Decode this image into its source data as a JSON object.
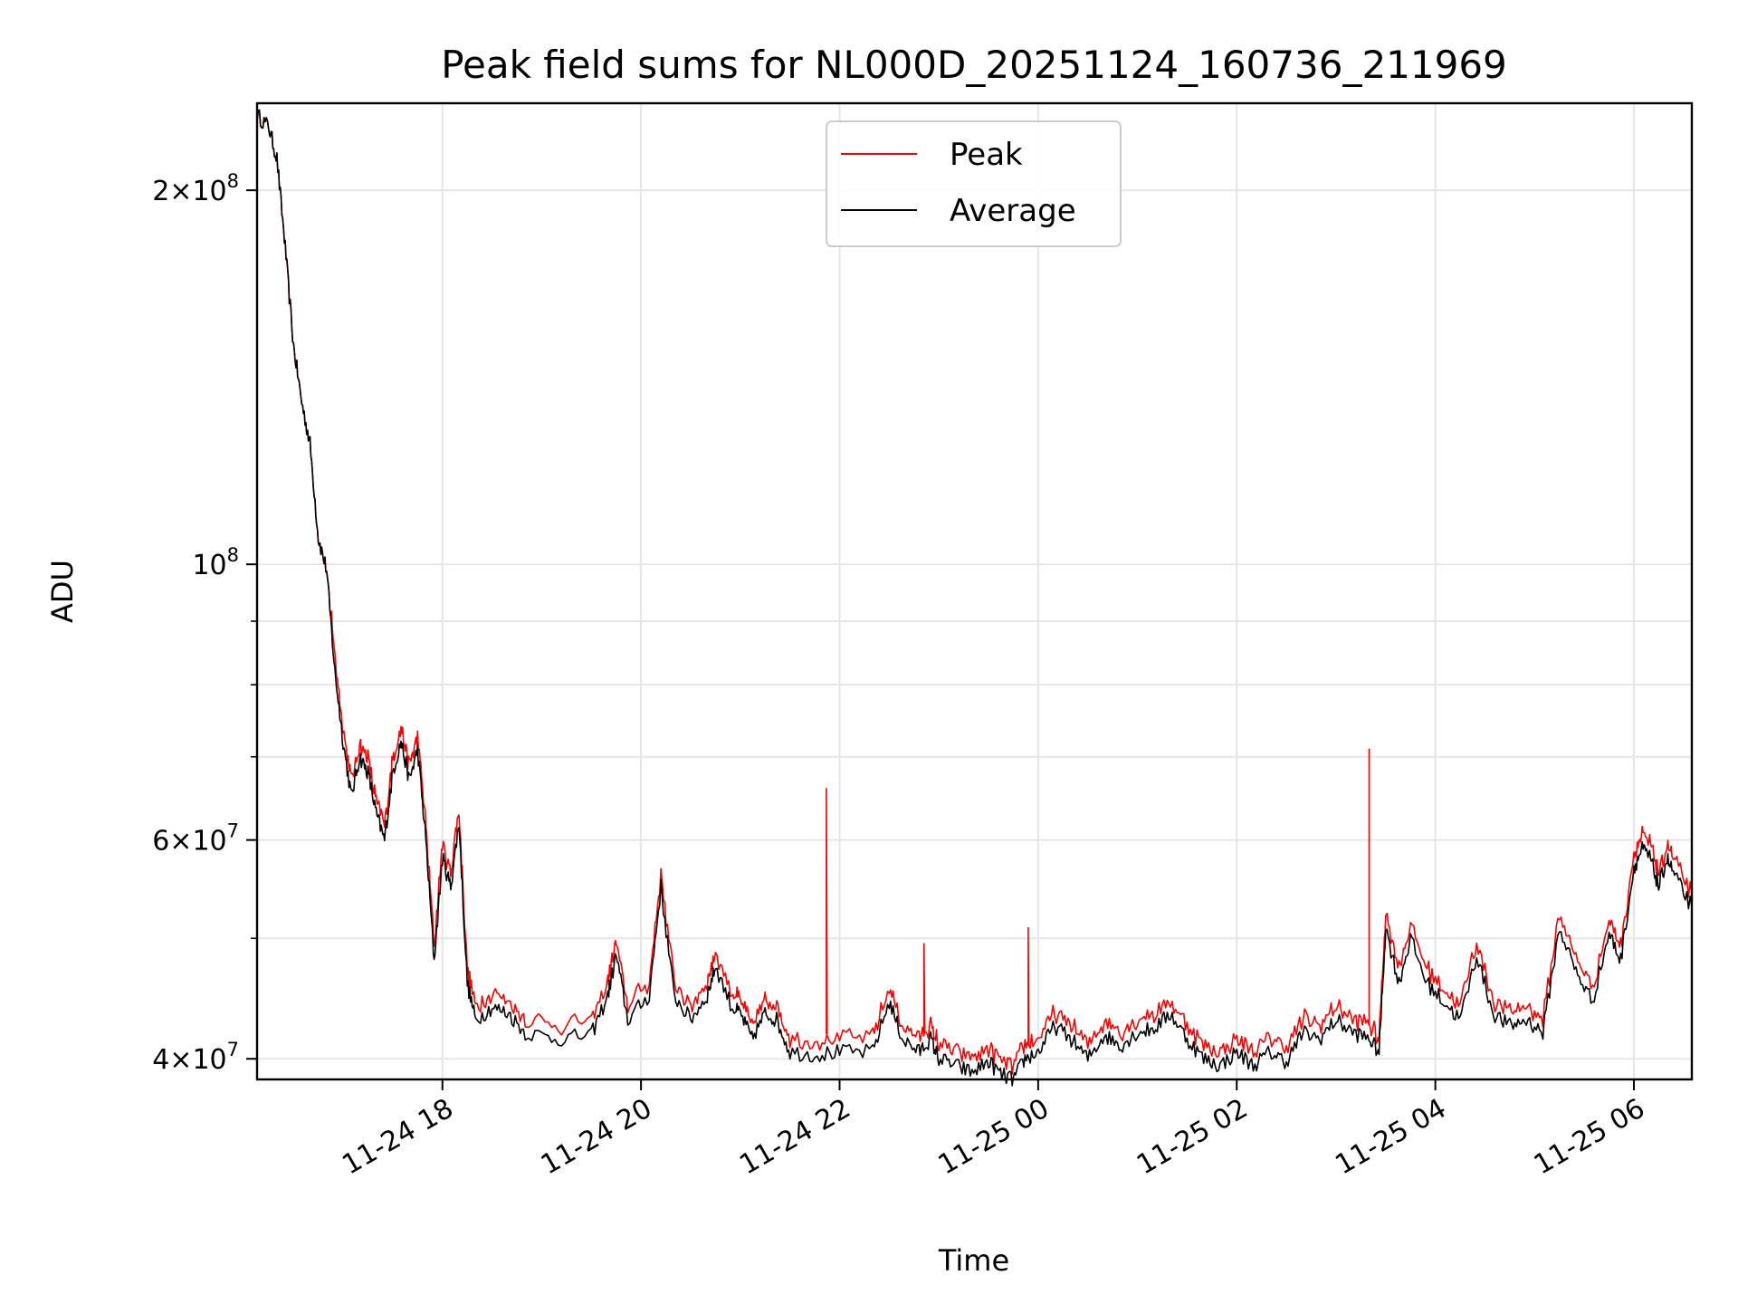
{
  "chart_data": {
    "type": "line",
    "title": "Peak field sums for NL000D_20251124_160736_211969",
    "xlabel": "Time",
    "ylabel": "ADU",
    "x_range": [
      "2025-11-24 16:08",
      "2025-11-25 06:35"
    ],
    "ylim": [
      38500000,
      235000000
    ],
    "y_scale": "log",
    "grid": true,
    "legend_position": "upper-center",
    "x_ticks": [
      {
        "t": "2025-11-24 18:00",
        "label": "11-24 18"
      },
      {
        "t": "2025-11-24 20:00",
        "label": "11-24 20"
      },
      {
        "t": "2025-11-24 22:00",
        "label": "11-24 22"
      },
      {
        "t": "2025-11-25 00:00",
        "label": "11-25 00"
      },
      {
        "t": "2025-11-25 02:00",
        "label": "11-25 02"
      },
      {
        "t": "2025-11-25 04:00",
        "label": "11-25 04"
      },
      {
        "t": "2025-11-25 06:00",
        "label": "11-25 06"
      }
    ],
    "y_major_ticks": [
      {
        "v": 40000000,
        "base": "4",
        "exp": "7"
      },
      {
        "v": 60000000,
        "base": "6",
        "exp": "7"
      },
      {
        "v": 100000000,
        "base": "",
        "exp": "8"
      },
      {
        "v": 200000000,
        "base": "2",
        "exp": "8"
      }
    ],
    "y_minor_gridlines": [
      50000000,
      70000000,
      80000000,
      90000000
    ],
    "colors": {
      "peak": "#ff0000",
      "average": "#000000"
    },
    "series": [
      {
        "name": "Peak",
        "spikes": [
          {
            "t": "2025-11-24 21:52",
            "v": 66000000
          },
          {
            "t": "2025-11-24 22:51",
            "v": 49500000
          },
          {
            "t": "2025-11-24 23:54",
            "v": 51000000
          },
          {
            "t": "2025-11-25 03:20",
            "v": 71000000
          }
        ]
      },
      {
        "name": "Average",
        "points": [
          [
            "2025-11-24 16:08",
            230000000
          ],
          [
            "2025-11-24 16:15",
            225000000
          ],
          [
            "2025-11-24 16:20",
            212000000
          ],
          [
            "2025-11-24 16:25",
            180000000
          ],
          [
            "2025-11-24 16:30",
            150000000
          ],
          [
            "2025-11-24 16:35",
            135000000
          ],
          [
            "2025-11-24 16:40",
            125000000
          ],
          [
            "2025-11-24 16:45",
            105000000
          ],
          [
            "2025-11-24 16:50",
            99000000
          ],
          [
            "2025-11-24 16:55",
            82000000
          ],
          [
            "2025-11-24 17:00",
            72000000
          ],
          [
            "2025-11-24 17:05",
            65000000
          ],
          [
            "2025-11-24 17:10",
            70000000
          ],
          [
            "2025-11-24 17:15",
            68000000
          ],
          [
            "2025-11-24 17:20",
            63000000
          ],
          [
            "2025-11-24 17:25",
            60000000
          ],
          [
            "2025-11-24 17:30",
            68000000
          ],
          [
            "2025-11-24 17:35",
            72000000
          ],
          [
            "2025-11-24 17:40",
            67000000
          ],
          [
            "2025-11-24 17:45",
            71000000
          ],
          [
            "2025-11-24 17:50",
            60000000
          ],
          [
            "2025-11-24 17:55",
            48000000
          ],
          [
            "2025-11-24 18:00",
            58000000
          ],
          [
            "2025-11-24 18:05",
            55000000
          ],
          [
            "2025-11-24 18:10",
            62000000
          ],
          [
            "2025-11-24 18:15",
            46000000
          ],
          [
            "2025-11-24 18:20",
            43000000
          ],
          [
            "2025-11-24 18:30",
            44000000
          ],
          [
            "2025-11-24 18:40",
            43500000
          ],
          [
            "2025-11-24 18:50",
            42000000
          ],
          [
            "2025-11-24 19:10",
            41500000
          ],
          [
            "2025-11-24 19:30",
            41800000
          ],
          [
            "2025-11-24 19:40",
            45000000
          ],
          [
            "2025-11-24 19:45",
            48500000
          ],
          [
            "2025-11-24 19:52",
            43000000
          ],
          [
            "2025-11-24 20:05",
            45000000
          ],
          [
            "2025-11-24 20:12",
            55000000
          ],
          [
            "2025-11-24 20:20",
            45000000
          ],
          [
            "2025-11-24 20:30",
            43000000
          ],
          [
            "2025-11-24 20:40",
            45000000
          ],
          [
            "2025-11-24 20:45",
            47500000
          ],
          [
            "2025-11-24 20:55",
            44000000
          ],
          [
            "2025-11-24 21:00",
            43500000
          ],
          [
            "2025-11-24 21:07",
            41500000
          ],
          [
            "2025-11-24 21:15",
            43500000
          ],
          [
            "2025-11-24 21:22",
            43000000
          ],
          [
            "2025-11-24 21:30",
            40500000
          ],
          [
            "2025-11-24 21:45",
            40300000
          ],
          [
            "2025-11-24 22:00",
            40500000
          ],
          [
            "2025-11-24 22:20",
            40500000
          ],
          [
            "2025-11-24 22:30",
            44500000
          ],
          [
            "2025-11-24 22:38",
            41500000
          ],
          [
            "2025-11-24 22:48",
            40500000
          ],
          [
            "2025-11-24 22:55",
            41500000
          ],
          [
            "2025-11-24 23:00",
            40000000
          ],
          [
            "2025-11-24 23:10",
            39500000
          ],
          [
            "2025-11-24 23:20",
            39000000
          ],
          [
            "2025-11-24 23:30",
            39800000
          ],
          [
            "2025-11-24 23:38",
            38800000
          ],
          [
            "2025-11-24 23:45",
            38500000
          ],
          [
            "2025-11-24 23:52",
            40000000
          ],
          [
            "2025-11-25 00:00",
            40500000
          ],
          [
            "2025-11-25 00:10",
            42500000
          ],
          [
            "2025-11-25 00:20",
            41500000
          ],
          [
            "2025-11-25 00:30",
            40000000
          ],
          [
            "2025-11-25 00:40",
            41800000
          ],
          [
            "2025-11-25 00:50",
            41000000
          ],
          [
            "2025-11-25 01:00",
            42000000
          ],
          [
            "2025-11-25 01:10",
            42300000
          ],
          [
            "2025-11-25 01:20",
            43500000
          ],
          [
            "2025-11-25 01:30",
            41500000
          ],
          [
            "2025-11-25 01:40",
            40000000
          ],
          [
            "2025-11-25 01:50",
            39500000
          ],
          [
            "2025-11-25 02:00",
            40500000
          ],
          [
            "2025-11-25 02:10",
            39500000
          ],
          [
            "2025-11-25 02:20",
            40500000
          ],
          [
            "2025-11-25 02:30",
            39800000
          ],
          [
            "2025-11-25 02:40",
            42000000
          ],
          [
            "2025-11-25 02:50",
            41500000
          ],
          [
            "2025-11-25 03:00",
            43000000
          ],
          [
            "2025-11-25 03:10",
            42000000
          ],
          [
            "2025-11-25 03:20",
            41500000
          ],
          [
            "2025-11-25 03:26",
            40500000
          ],
          [
            "2025-11-25 03:30",
            51000000
          ],
          [
            "2025-11-25 03:38",
            46000000
          ],
          [
            "2025-11-25 03:45",
            50000000
          ],
          [
            "2025-11-25 03:55",
            46000000
          ],
          [
            "2025-11-25 04:05",
            44500000
          ],
          [
            "2025-11-25 04:15",
            43000000
          ],
          [
            "2025-11-25 04:25",
            48500000
          ],
          [
            "2025-11-25 04:35",
            43500000
          ],
          [
            "2025-11-25 04:45",
            42500000
          ],
          [
            "2025-11-25 04:55",
            43000000
          ],
          [
            "2025-11-25 05:05",
            42000000
          ],
          [
            "2025-11-25 05:15",
            51000000
          ],
          [
            "2025-11-25 05:25",
            47000000
          ],
          [
            "2025-11-25 05:35",
            44500000
          ],
          [
            "2025-11-25 05:45",
            50500000
          ],
          [
            "2025-11-25 05:52",
            48000000
          ],
          [
            "2025-11-25 06:00",
            57000000
          ],
          [
            "2025-11-25 06:05",
            59000000
          ],
          [
            "2025-11-25 06:10",
            58000000
          ],
          [
            "2025-11-25 06:15",
            55000000
          ],
          [
            "2025-11-25 06:20",
            58000000
          ],
          [
            "2025-11-25 06:25",
            56000000
          ],
          [
            "2025-11-25 06:35",
            53000000
          ]
        ]
      }
    ]
  }
}
